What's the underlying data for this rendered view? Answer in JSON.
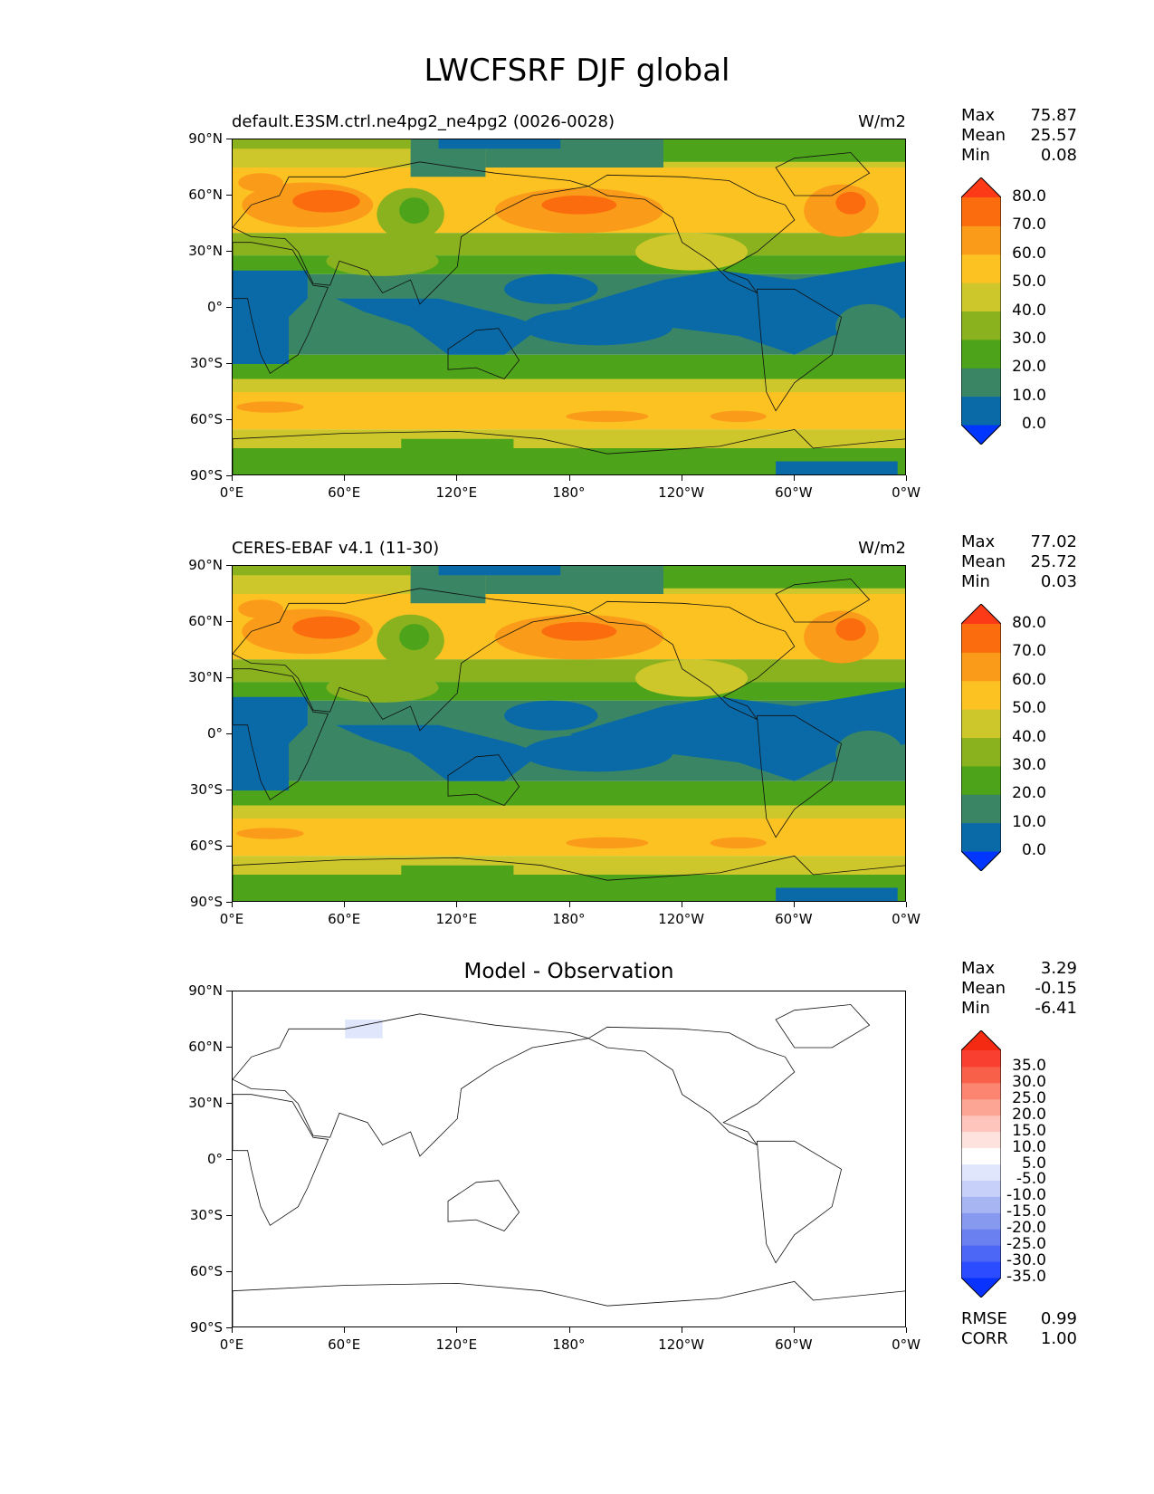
{
  "figure_title": "LWCFSRF DJF global",
  "lat_ticks": [
    "90°N",
    "60°N",
    "30°N",
    "0°",
    "30°S",
    "60°S",
    "90°S"
  ],
  "lon_ticks": [
    "0°E",
    "60°E",
    "120°E",
    "180°",
    "120°W",
    "60°W",
    "0°W"
  ],
  "panels": [
    {
      "title_left": "default.E3SM.ctrl.ne4pg2_ne4pg2 (0026-0028)",
      "title_right": "W/m2",
      "title_center": "",
      "stats": [
        {
          "label": "Max",
          "value": "75.87"
        },
        {
          "label": "Mean",
          "value": "25.57"
        },
        {
          "label": "Min",
          "value": "0.08"
        }
      ],
      "colorbar_labels": [
        "80.0",
        "70.0",
        "60.0",
        "50.0",
        "40.0",
        "30.0",
        "20.0",
        "10.0",
        "0.0"
      ],
      "colorbar_colors": [
        "#0036ff",
        "#0a6aa8",
        "#3a8664",
        "#4da319",
        "#8ab21f",
        "#cdc72b",
        "#fcc222",
        "#fb9b1a",
        "#fb6c0e",
        "#fd3a17"
      ],
      "footer_stats": []
    },
    {
      "title_left": "CERES-EBAF v4.1 (11-30)",
      "title_right": "W/m2",
      "title_center": "",
      "stats": [
        {
          "label": "Max",
          "value": "77.02"
        },
        {
          "label": "Mean",
          "value": "25.72"
        },
        {
          "label": "Min",
          "value": "0.03"
        }
      ],
      "colorbar_labels": [
        "80.0",
        "70.0",
        "60.0",
        "50.0",
        "40.0",
        "30.0",
        "20.0",
        "10.0",
        "0.0"
      ],
      "colorbar_colors": [
        "#0036ff",
        "#0a6aa8",
        "#3a8664",
        "#4da319",
        "#8ab21f",
        "#cdc72b",
        "#fcc222",
        "#fb9b1a",
        "#fb6c0e",
        "#fd3a17"
      ],
      "footer_stats": []
    },
    {
      "title_left": "",
      "title_right": "",
      "title_center": "Model - Observation",
      "stats": [
        {
          "label": "Max",
          "value": "3.29"
        },
        {
          "label": "Mean",
          "value": "-0.15"
        },
        {
          "label": "Min",
          "value": "-6.41"
        }
      ],
      "colorbar_labels": [
        "35.0",
        "30.0",
        "25.0",
        "20.0",
        "15.0",
        "10.0",
        "5.0",
        "-5.0",
        "-10.0",
        "-15.0",
        "-20.0",
        "-25.0",
        "-30.0",
        "-35.0"
      ],
      "colorbar_colors": [
        "#0a32ff",
        "#2b4dff",
        "#4c66f5",
        "#6a80f0",
        "#8799ee",
        "#a8b5f3",
        "#c7d0f8",
        "#e0e6fb",
        "#ffffff",
        "#fde2dd",
        "#fdc5bb",
        "#fca595",
        "#fb8570",
        "#f9604a",
        "#f94030",
        "#f52a12"
      ],
      "footer_stats": [
        {
          "label": "RMSE",
          "value": "0.99"
        },
        {
          "label": "CORR",
          "value": "1.00"
        }
      ]
    }
  ]
}
